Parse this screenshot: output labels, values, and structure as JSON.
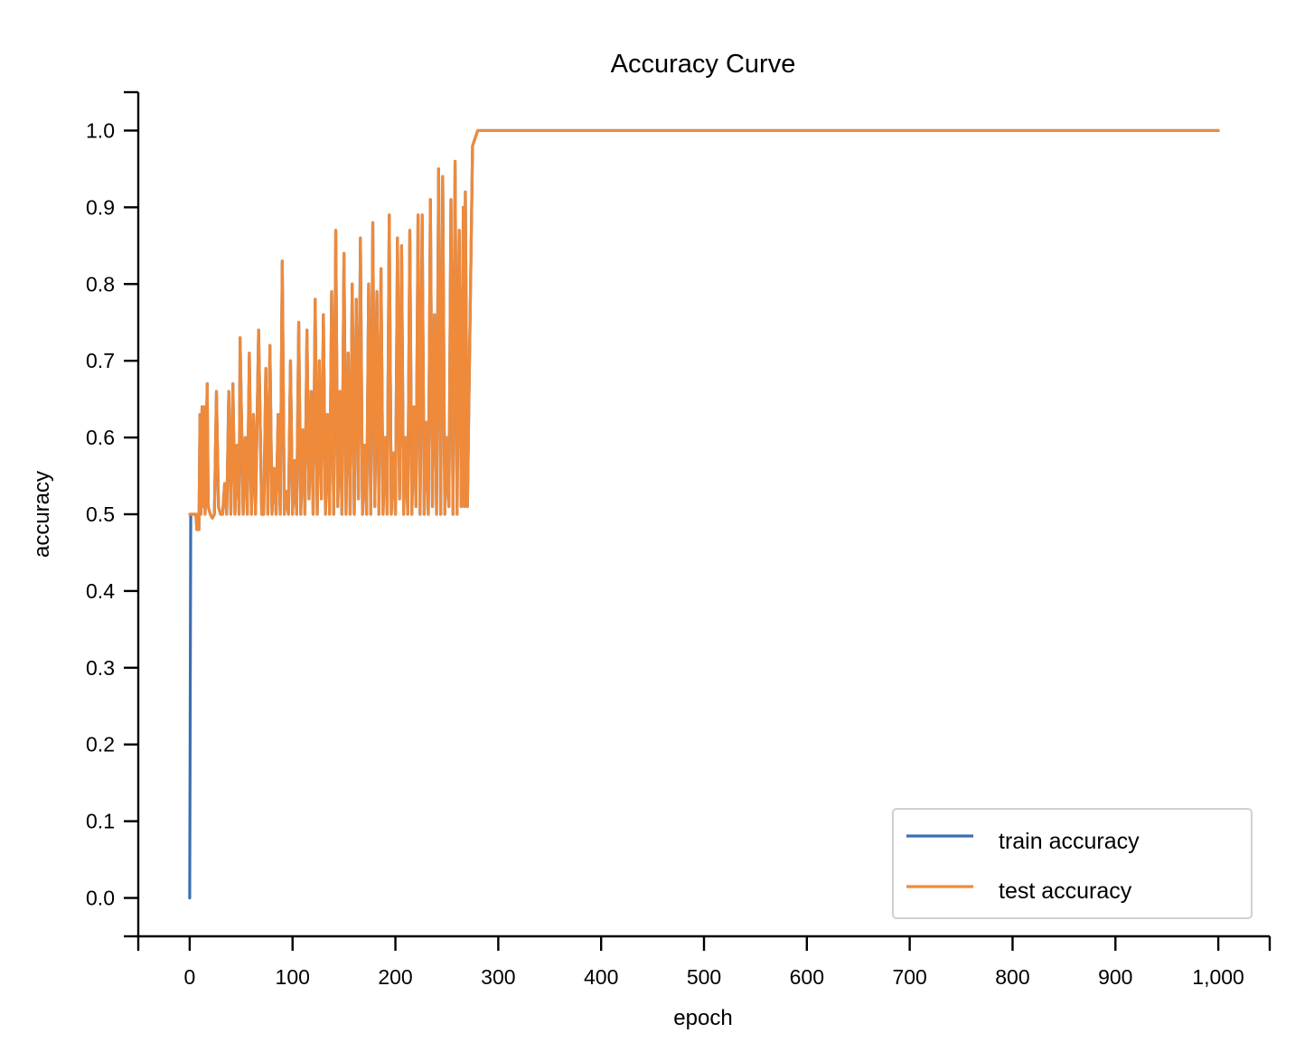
{
  "chart_data": {
    "type": "line",
    "title": "Accuracy Curve",
    "xlabel": "epoch",
    "ylabel": "accuracy",
    "xlim": [
      -50,
      1050
    ],
    "ylim": [
      -0.05,
      1.05
    ],
    "xticks": [
      0,
      100,
      200,
      300,
      400,
      500,
      600,
      700,
      800,
      900,
      1000
    ],
    "xtick_labels": [
      "0",
      "100",
      "200",
      "300",
      "400",
      "500",
      "600",
      "700",
      "800",
      "900",
      "1,000"
    ],
    "yticks": [
      0.0,
      0.1,
      0.2,
      0.3,
      0.4,
      0.5,
      0.6,
      0.7,
      0.8,
      0.9,
      1.0
    ],
    "ytick_labels": [
      "0.0",
      "0.1",
      "0.2",
      "0.3",
      "0.4",
      "0.5",
      "0.6",
      "0.7",
      "0.8",
      "0.9",
      "1.0"
    ],
    "grid": false,
    "legend_position": "lower-right",
    "series": [
      {
        "name": "train accuracy",
        "color": "#3b6fb0",
        "x": [
          0,
          1,
          2,
          3,
          4,
          5,
          6,
          7,
          8,
          9,
          10,
          11,
          12,
          13,
          14,
          15,
          17,
          18,
          20,
          22,
          24,
          26,
          28,
          30,
          32,
          34,
          36,
          38,
          40,
          42,
          44,
          46,
          48,
          49,
          52,
          54,
          56,
          58,
          60,
          62,
          64,
          67,
          70,
          72,
          74,
          76,
          78,
          80,
          82,
          84,
          86,
          88,
          90,
          92,
          94,
          96,
          98,
          100,
          102,
          104,
          106,
          108,
          110,
          112,
          114,
          116,
          118,
          120,
          122,
          124,
          126,
          128,
          130,
          132,
          134,
          136,
          138,
          140,
          142,
          144,
          146,
          148,
          150,
          152,
          154,
          156,
          158,
          160,
          162,
          164,
          166,
          168,
          170,
          172,
          174,
          176,
          178,
          180,
          182,
          184,
          186,
          188,
          190,
          192,
          194,
          196,
          198,
          200,
          202,
          204,
          206,
          208,
          210,
          212,
          214,
          216,
          218,
          220,
          222,
          224,
          226,
          228,
          230,
          232,
          234,
          236,
          238,
          240,
          242,
          244,
          246,
          248,
          250,
          252,
          254,
          256,
          258,
          260,
          262,
          264,
          266,
          267,
          268,
          270,
          275,
          280,
          300,
          400,
          500,
          600,
          700,
          800,
          900,
          1000
        ],
        "values": [
          0.0,
          0.5,
          0.5,
          0.5,
          0.5,
          0.5,
          0.5,
          0.48,
          0.5,
          0.48,
          0.63,
          0.5,
          0.64,
          0.51,
          0.64,
          0.5,
          0.67,
          0.51,
          0.5,
          0.495,
          0.5,
          0.66,
          0.51,
          0.5,
          0.5,
          0.54,
          0.5,
          0.66,
          0.5,
          0.67,
          0.5,
          0.59,
          0.5,
          0.73,
          0.5,
          0.6,
          0.5,
          0.71,
          0.5,
          0.63,
          0.5,
          0.74,
          0.5,
          0.5,
          0.69,
          0.5,
          0.72,
          0.5,
          0.56,
          0.5,
          0.63,
          0.5,
          0.83,
          0.5,
          0.53,
          0.5,
          0.7,
          0.5,
          0.57,
          0.5,
          0.75,
          0.5,
          0.61,
          0.5,
          0.74,
          0.52,
          0.66,
          0.5,
          0.78,
          0.5,
          0.7,
          0.52,
          0.76,
          0.5,
          0.63,
          0.5,
          0.79,
          0.5,
          0.87,
          0.51,
          0.66,
          0.5,
          0.84,
          0.5,
          0.71,
          0.5,
          0.8,
          0.5,
          0.78,
          0.52,
          0.86,
          0.5,
          0.59,
          0.5,
          0.8,
          0.5,
          0.88,
          0.51,
          0.79,
          0.5,
          0.82,
          0.5,
          0.6,
          0.5,
          0.89,
          0.5,
          0.58,
          0.5,
          0.86,
          0.52,
          0.85,
          0.5,
          0.6,
          0.5,
          0.87,
          0.5,
          0.64,
          0.51,
          0.89,
          0.5,
          0.89,
          0.5,
          0.62,
          0.5,
          0.91,
          0.51,
          0.76,
          0.5,
          0.95,
          0.5,
          0.94,
          0.5,
          0.6,
          0.51,
          0.91,
          0.5,
          0.96,
          0.5,
          0.87,
          0.51,
          0.9,
          0.51,
          0.92,
          0.51,
          0.98,
          1.0,
          1.0,
          1.0,
          1.0,
          1.0,
          1.0,
          1.0,
          1.0,
          1.0
        ]
      },
      {
        "name": "test accuracy",
        "color": "#ef8a3a",
        "x": [
          0,
          1,
          2,
          3,
          4,
          5,
          6,
          7,
          8,
          9,
          10,
          11,
          12,
          13,
          14,
          15,
          17,
          18,
          20,
          22,
          24,
          26,
          28,
          30,
          32,
          34,
          36,
          38,
          40,
          42,
          44,
          46,
          48,
          49,
          52,
          54,
          56,
          58,
          60,
          62,
          64,
          67,
          70,
          72,
          74,
          76,
          78,
          80,
          82,
          84,
          86,
          88,
          90,
          92,
          94,
          96,
          98,
          100,
          102,
          104,
          106,
          108,
          110,
          112,
          114,
          116,
          118,
          120,
          122,
          124,
          126,
          128,
          130,
          132,
          134,
          136,
          138,
          140,
          142,
          144,
          146,
          148,
          150,
          152,
          154,
          156,
          158,
          160,
          162,
          164,
          166,
          168,
          170,
          172,
          174,
          176,
          178,
          180,
          182,
          184,
          186,
          188,
          190,
          192,
          194,
          196,
          198,
          200,
          202,
          204,
          206,
          208,
          210,
          212,
          214,
          216,
          218,
          220,
          222,
          224,
          226,
          228,
          230,
          232,
          234,
          236,
          238,
          240,
          242,
          244,
          246,
          248,
          250,
          252,
          254,
          256,
          258,
          260,
          262,
          264,
          266,
          267,
          268,
          270,
          275,
          280,
          300,
          400,
          500,
          600,
          700,
          800,
          900,
          1000
        ],
        "values": [
          0.5,
          0.5,
          0.5,
          0.5,
          0.5,
          0.5,
          0.5,
          0.48,
          0.5,
          0.48,
          0.63,
          0.5,
          0.64,
          0.51,
          0.64,
          0.5,
          0.67,
          0.51,
          0.5,
          0.495,
          0.5,
          0.66,
          0.51,
          0.5,
          0.5,
          0.54,
          0.5,
          0.66,
          0.5,
          0.67,
          0.5,
          0.59,
          0.5,
          0.73,
          0.5,
          0.6,
          0.5,
          0.71,
          0.5,
          0.63,
          0.5,
          0.74,
          0.5,
          0.5,
          0.69,
          0.5,
          0.72,
          0.5,
          0.56,
          0.5,
          0.63,
          0.5,
          0.83,
          0.5,
          0.53,
          0.5,
          0.7,
          0.5,
          0.57,
          0.5,
          0.75,
          0.5,
          0.61,
          0.5,
          0.74,
          0.52,
          0.66,
          0.5,
          0.78,
          0.5,
          0.7,
          0.52,
          0.76,
          0.5,
          0.63,
          0.5,
          0.79,
          0.5,
          0.87,
          0.51,
          0.66,
          0.5,
          0.84,
          0.5,
          0.71,
          0.5,
          0.8,
          0.5,
          0.78,
          0.52,
          0.86,
          0.5,
          0.59,
          0.5,
          0.8,
          0.5,
          0.88,
          0.51,
          0.79,
          0.5,
          0.82,
          0.5,
          0.6,
          0.5,
          0.89,
          0.5,
          0.58,
          0.5,
          0.86,
          0.52,
          0.85,
          0.5,
          0.6,
          0.5,
          0.87,
          0.5,
          0.64,
          0.51,
          0.89,
          0.5,
          0.89,
          0.5,
          0.62,
          0.5,
          0.91,
          0.51,
          0.76,
          0.5,
          0.95,
          0.5,
          0.94,
          0.5,
          0.6,
          0.51,
          0.91,
          0.5,
          0.96,
          0.5,
          0.87,
          0.51,
          0.9,
          0.51,
          0.92,
          0.51,
          0.98,
          1.0,
          1.0,
          1.0,
          1.0,
          1.0,
          1.0,
          1.0,
          1.0,
          1.0
        ]
      }
    ]
  }
}
